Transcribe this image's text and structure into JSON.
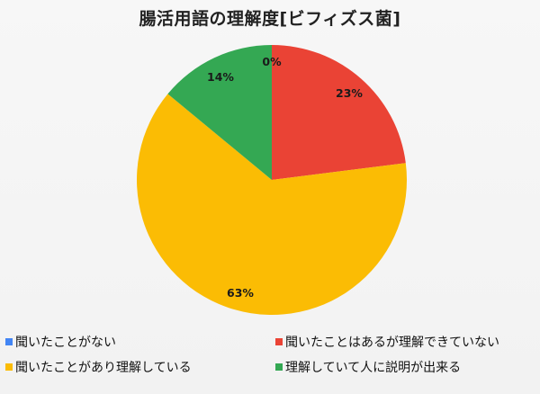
{
  "chart_data": {
    "type": "pie",
    "title": "腸活用語の理解度[ビフィズス菌]",
    "categories": [
      "聞いたことがない",
      "聞いたことはあるが理解できていない",
      "聞いたことがあり理解している",
      "理解していて人に説明が出来る"
    ],
    "values": [
      0,
      23,
      63,
      14
    ],
    "labels": [
      "0%",
      "23%",
      "63%",
      "14%"
    ],
    "colors": [
      "#4285f4",
      "#ea4335",
      "#fbbc04",
      "#34a853"
    ],
    "legend_position": "bottom",
    "start_angle_deg": 0,
    "direction": "clockwise"
  },
  "legend": {
    "items": [
      {
        "label": "聞いたことがない",
        "color": "#4285f4"
      },
      {
        "label": "聞いたことはあるが理解できていない",
        "color": "#ea4335"
      },
      {
        "label": "聞いたことがあり理解している",
        "color": "#fbbc04"
      },
      {
        "label": "理解していて人に説明が出来る",
        "color": "#34a853"
      }
    ]
  }
}
